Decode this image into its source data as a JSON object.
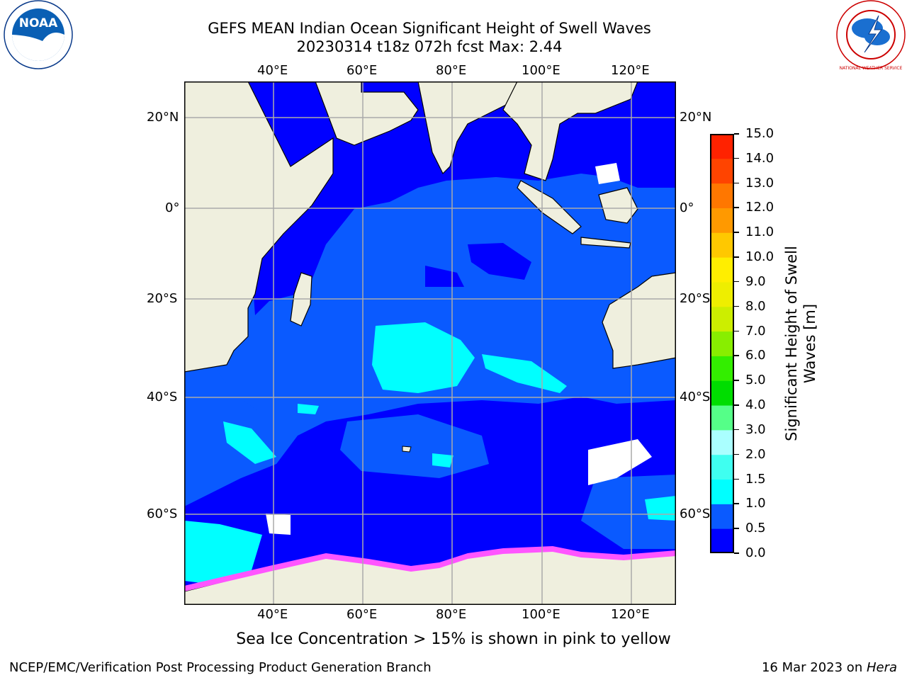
{
  "title": {
    "line1": "GEFS MEAN Indian Ocean Significant Height of Swell Waves",
    "line2": "20230314 t18z 072h fcst   Max: 2.44"
  },
  "axes": {
    "lon_ticks": [
      "40°E",
      "60°E",
      "80°E",
      "100°E",
      "120°E"
    ],
    "lon_values": [
      40,
      60,
      80,
      100,
      120
    ],
    "lat_ticks": [
      "20°N",
      "0°",
      "20°S",
      "40°S",
      "60°S"
    ],
    "lat_values": [
      20,
      0,
      -20,
      -40,
      -60
    ]
  },
  "colorbar": {
    "title_line1": "Significant Height of Swell",
    "title_line2": "Waves [m]",
    "labels": [
      "0.0",
      "0.5",
      "1.0",
      "1.5",
      "2.0",
      "3.0",
      "4.0",
      "5.0",
      "6.0",
      "7.0",
      "8.0",
      "9.0",
      "10.0",
      "11.0",
      "12.0",
      "13.0",
      "14.0",
      "15.0"
    ],
    "colors": [
      "#0000ff",
      "#0a5aff",
      "#00ffff",
      "#3ffff0",
      "#aaffff",
      "#55ff88",
      "#00dd00",
      "#33ee00",
      "#88ee00",
      "#ccee00",
      "#eeee00",
      "#ffee00",
      "#ffc800",
      "#ff9900",
      "#ff7700",
      "#ff4400",
      "#ff2200"
    ]
  },
  "caption": "Sea Ice Concentration > 15% is shown in pink to yellow",
  "footer": {
    "left": "NCEP/EMC/Verification Post Processing Product Generation Branch",
    "right_date": "16 Mar 2023 on ",
    "right_host": "Hera"
  },
  "logos": {
    "noaa_text": "NOAA",
    "nws_text": "NATIONAL WEATHER SERVICE"
  },
  "colors": {
    "land": "#efefde",
    "sea_low": "#0000ff",
    "sea_mid": "#0a5aff",
    "sea_high": "#00ffff",
    "ice_pink": "#ff55ff",
    "grid": "#aaaaaa"
  }
}
